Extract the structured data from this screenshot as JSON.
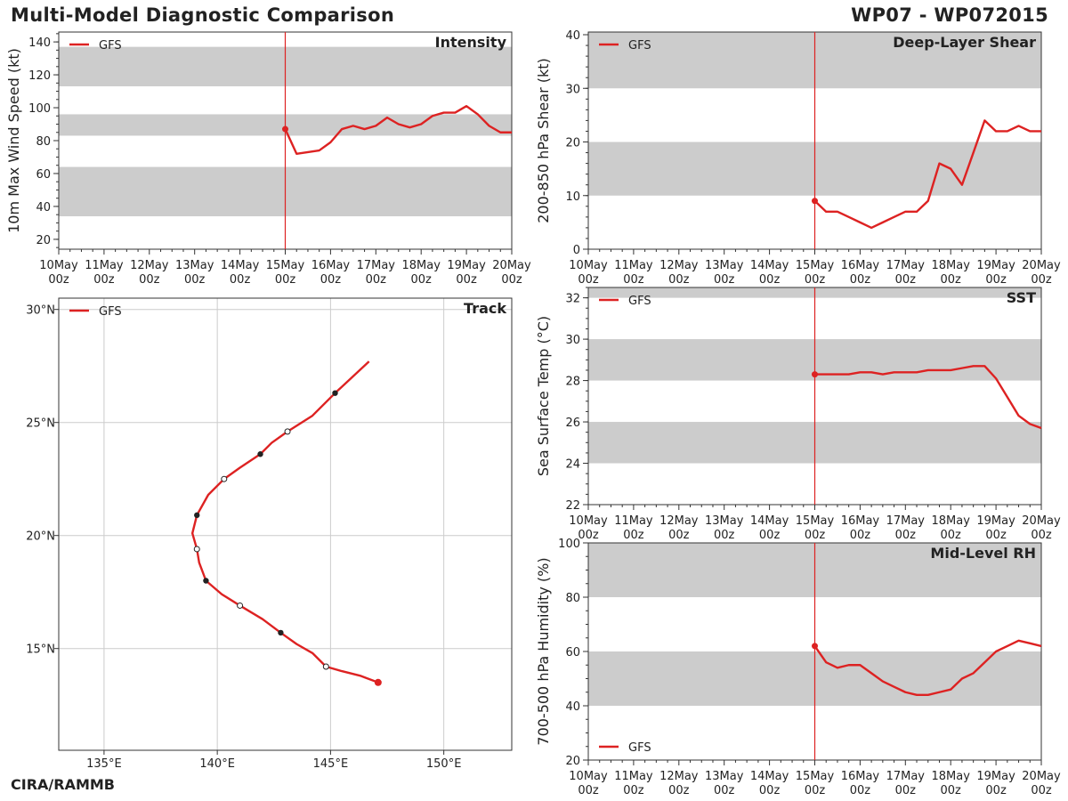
{
  "header": {
    "title": "Multi-Model Diagnostic Comparison",
    "storm_id": "WP07 - WP072015"
  },
  "footer": {
    "credit": "CIRA/RAMMB"
  },
  "colors": {
    "model_line": "#dd2222",
    "band": "#cccccc",
    "axis": "#333333",
    "grid": "#cccccc"
  },
  "time_axis": {
    "labels": [
      [
        "10May",
        "00z"
      ],
      [
        "11May",
        "00z"
      ],
      [
        "12May",
        "00z"
      ],
      [
        "13May",
        "00z"
      ],
      [
        "14May",
        "00z"
      ],
      [
        "15May",
        "00z"
      ],
      [
        "16May",
        "00z"
      ],
      [
        "17May",
        "00z"
      ],
      [
        "18May",
        "00z"
      ],
      [
        "19May",
        "00z"
      ],
      [
        "20May",
        "00z"
      ]
    ],
    "init_day": 5
  },
  "chart_data": [
    {
      "id": "intensity",
      "type": "line",
      "title": "Intensity",
      "ylabel": "10m Max Wind Speed (kt)",
      "xlim": [
        0,
        10
      ],
      "ylim": [
        14,
        146
      ],
      "yticks": [
        20,
        40,
        60,
        80,
        100,
        120,
        140
      ],
      "minor_step": 5,
      "bands": [
        [
          34,
          64
        ],
        [
          83,
          96
        ],
        [
          113,
          137
        ]
      ],
      "legend": "top-left",
      "series": [
        {
          "name": "GFS",
          "x": [
            5,
            5.25,
            5.5,
            5.75,
            6,
            6.25,
            6.5,
            6.75,
            7,
            7.25,
            7.5,
            7.75,
            8,
            8.25,
            8.5,
            8.75,
            9,
            9.25,
            9.5,
            9.75,
            10
          ],
          "y": [
            87,
            72,
            73,
            74,
            79,
            87,
            89,
            87,
            89,
            94,
            90,
            88,
            90,
            95,
            97,
            97,
            101,
            96,
            89,
            85,
            85
          ]
        }
      ]
    },
    {
      "id": "shear",
      "type": "line",
      "title": "Deep-Layer Shear",
      "ylabel": "200-850 hPa Shear (kt)",
      "xlim": [
        0,
        10
      ],
      "ylim": [
        0,
        40.5
      ],
      "yticks": [
        0,
        10,
        20,
        30,
        40
      ],
      "minor_step": 2,
      "bands": [
        [
          10,
          20
        ],
        [
          30,
          40.5
        ]
      ],
      "legend": "top-left",
      "series": [
        {
          "name": "GFS",
          "x": [
            5,
            5.25,
            5.5,
            5.75,
            6,
            6.25,
            6.5,
            6.75,
            7,
            7.25,
            7.5,
            7.75,
            8,
            8.25,
            8.5,
            8.75,
            9,
            9.25,
            9.5,
            9.75,
            10
          ],
          "y": [
            9,
            7,
            7,
            6,
            5,
            4,
            5,
            6,
            7,
            7,
            9,
            16,
            15,
            12,
            18,
            24,
            22,
            22,
            23,
            22,
            22
          ]
        }
      ]
    },
    {
      "id": "sst",
      "type": "line",
      "title": "SST",
      "ylabel": "Sea Surface Temp (°C)",
      "xlim": [
        0,
        10
      ],
      "ylim": [
        22,
        32.5
      ],
      "yticks": [
        22,
        24,
        26,
        28,
        30,
        32
      ],
      "minor_step": 0.5,
      "bands": [
        [
          24,
          26
        ],
        [
          28,
          30
        ],
        [
          32,
          32.5
        ]
      ],
      "legend": "top-left",
      "series": [
        {
          "name": "GFS",
          "x": [
            5,
            5.25,
            5.5,
            5.75,
            6,
            6.25,
            6.5,
            6.75,
            7,
            7.25,
            7.5,
            7.75,
            8,
            8.25,
            8.5,
            8.75,
            9,
            9.25,
            9.5,
            9.75,
            10
          ],
          "y": [
            28.3,
            28.3,
            28.3,
            28.3,
            28.4,
            28.4,
            28.3,
            28.4,
            28.4,
            28.4,
            28.5,
            28.5,
            28.5,
            28.6,
            28.7,
            28.7,
            28.1,
            27.2,
            26.3,
            25.9,
            25.7
          ]
        }
      ]
    },
    {
      "id": "rh",
      "type": "line",
      "title": "Mid-Level RH",
      "ylabel": "700-500 hPa Humidity (%)",
      "xlim": [
        0,
        10
      ],
      "ylim": [
        20,
        100
      ],
      "yticks": [
        20,
        40,
        60,
        80,
        100
      ],
      "minor_step": 5,
      "bands": [
        [
          40,
          60
        ],
        [
          80,
          100
        ]
      ],
      "legend": "bottom-left",
      "series": [
        {
          "name": "GFS",
          "x": [
            5,
            5.25,
            5.5,
            5.75,
            6,
            6.25,
            6.5,
            6.75,
            7,
            7.25,
            7.5,
            7.75,
            8,
            8.25,
            8.5,
            8.75,
            9,
            9.25,
            9.5,
            9.75,
            10
          ],
          "y": [
            62,
            56,
            54,
            55,
            55,
            52,
            49,
            47,
            45,
            44,
            44,
            45,
            46,
            50,
            52,
            56,
            60,
            62,
            64,
            63,
            62
          ]
        }
      ]
    },
    {
      "id": "track",
      "type": "line",
      "title": "Track",
      "xlim": [
        133,
        153
      ],
      "ylim": [
        10.5,
        30.5
      ],
      "xticks": [
        135,
        140,
        145,
        150
      ],
      "xtick_labels": [
        "135°E",
        "140°E",
        "145°E",
        "150°E"
      ],
      "yticks": [
        15,
        20,
        25,
        30
      ],
      "ytick_labels": [
        "15°N",
        "20°N",
        "25°N",
        "30°N"
      ],
      "legend": "top-left",
      "series": [
        {
          "name": "GFS",
          "lon": [
            147.1,
            146.3,
            145.5,
            144.8,
            144.2,
            143.5,
            142.8,
            142.0,
            141.0,
            140.2,
            139.5,
            139.2,
            139.1,
            138.9,
            139.1,
            139.6,
            140.3,
            141.0,
            141.9,
            142.4,
            143.1,
            144.2,
            145.2,
            146.7
          ],
          "lat": [
            13.5,
            13.8,
            14.0,
            14.2,
            14.8,
            15.2,
            15.7,
            16.3,
            16.9,
            17.4,
            18.0,
            18.8,
            19.4,
            20.1,
            20.9,
            21.8,
            22.5,
            23.0,
            23.6,
            24.1,
            24.6,
            25.3,
            26.3,
            27.7
          ],
          "markers": [
            {
              "index": 0,
              "style": "initial"
            },
            {
              "index": 3,
              "style": "open"
            },
            {
              "index": 6,
              "style": "filled"
            },
            {
              "index": 8,
              "style": "open"
            },
            {
              "index": 10,
              "style": "filled"
            },
            {
              "index": 12,
              "style": "open"
            },
            {
              "index": 14,
              "style": "filled"
            },
            {
              "index": 16,
              "style": "open"
            },
            {
              "index": 18,
              "style": "filled"
            },
            {
              "index": 20,
              "style": "open"
            },
            {
              "index": 22,
              "style": "filled"
            }
          ]
        }
      ]
    }
  ]
}
